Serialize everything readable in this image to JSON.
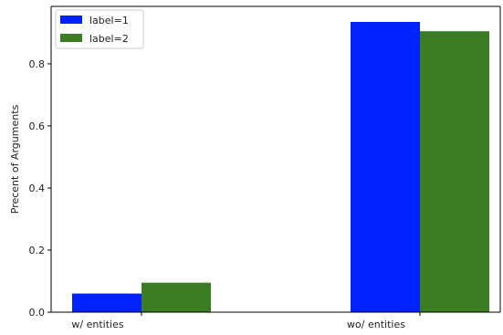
{
  "chart_data": {
    "type": "bar",
    "title": "",
    "xlabel": "",
    "ylabel": "Precent of Arguments",
    "categories": [
      "w/ entities",
      "wo/ entities"
    ],
    "series": [
      {
        "name": "label=1",
        "values": [
          0.06,
          0.935
        ],
        "color": "#0022ff"
      },
      {
        "name": "label=2",
        "values": [
          0.095,
          0.905
        ],
        "color": "#3a7d22"
      }
    ],
    "ylim": [
      0,
      0.985
    ],
    "yticks": [
      "0.0",
      "0.2",
      "0.4",
      "0.6",
      "0.8"
    ],
    "grid": false,
    "legend_position": "top-left"
  }
}
